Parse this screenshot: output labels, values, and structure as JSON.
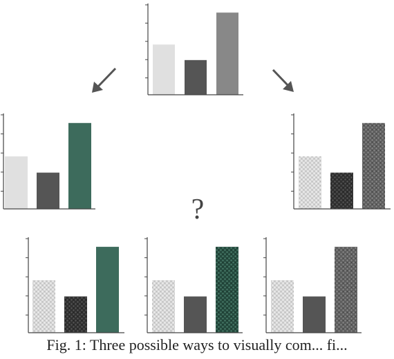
{
  "figure": {
    "question_mark": "?",
    "caption": "Fig. 1: Three possible ways to visually com... fi..."
  },
  "colors": {
    "axis": "#444444",
    "light_gray": "#e0e0e0",
    "dark_gray": "#555555",
    "mid_gray": "#888888",
    "green": "#3d6b5c",
    "arrow": "#555555"
  },
  "chart_data": [
    {
      "type": "bar",
      "panel": "top-source",
      "values": [
        0.55,
        0.38,
        0.9
      ],
      "fills": [
        "light-gray",
        "dark-gray",
        "mid-gray"
      ]
    },
    {
      "type": "bar",
      "panel": "left-color-change",
      "values": [
        0.55,
        0.38,
        0.9
      ],
      "fills": [
        "light-gray",
        "dark-gray",
        "green"
      ]
    },
    {
      "type": "bar",
      "panel": "right-texture-change",
      "values": [
        0.55,
        0.38,
        0.9
      ],
      "fills": [
        "light-gray-texture",
        "dark-texture",
        "mid-gray-texture"
      ]
    },
    {
      "type": "bar",
      "panel": "bottom-option-1",
      "values": [
        0.55,
        0.38,
        0.9
      ],
      "fills": [
        "light-gray-texture",
        "dark-texture",
        "green"
      ]
    },
    {
      "type": "bar",
      "panel": "bottom-option-2",
      "values": [
        0.55,
        0.38,
        0.9
      ],
      "fills": [
        "light-gray-texture",
        "dark-gray",
        "green-texture"
      ]
    },
    {
      "type": "bar",
      "panel": "bottom-option-3",
      "values": [
        0.55,
        0.38,
        0.9
      ],
      "fills": [
        "light-gray-texture",
        "dark-gray",
        "mid-gray-texture"
      ]
    }
  ]
}
